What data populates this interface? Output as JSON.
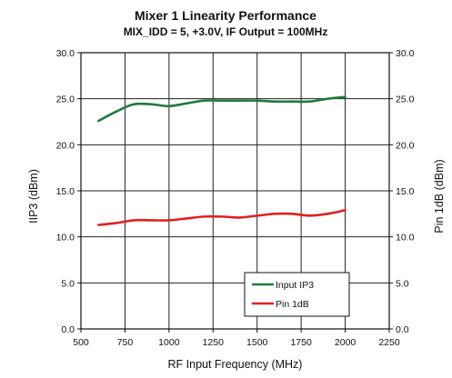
{
  "chart_data": {
    "type": "line",
    "title": "Mixer 1 Linearity Performance",
    "subtitle": "MIX_IDD = 5, +3.0V, IF Output = 100MHz",
    "xlabel": "RF Input Frequency (MHz)",
    "ylabel": "IIP3 (dBm)",
    "y2label": "Pin 1dB (dBm)",
    "xlim": [
      500,
      2250
    ],
    "ylim": [
      0,
      30
    ],
    "y2lim": [
      0,
      30
    ],
    "x_ticks": [
      500,
      750,
      1000,
      1250,
      1500,
      1750,
      2000,
      2250
    ],
    "y_ticks": [
      "0.0",
      "5.0",
      "10.0",
      "15.0",
      "20.0",
      "25.0",
      "30.0"
    ],
    "y2_ticks": [
      "0.0",
      "5.0",
      "10.0",
      "15.0",
      "20.0",
      "25.0",
      "30.0"
    ],
    "grid": true,
    "legend_position": "bottom-right",
    "series": [
      {
        "name": "Input IP3",
        "color": "#1f7a3a",
        "x": [
          600,
          700,
          800,
          900,
          1000,
          1100,
          1200,
          1300,
          1400,
          1500,
          1600,
          1700,
          1800,
          1900,
          2000
        ],
        "values": [
          22.6,
          23.6,
          24.4,
          24.4,
          24.2,
          24.5,
          24.8,
          24.8,
          24.8,
          24.8,
          24.7,
          24.7,
          24.7,
          25.0,
          25.2
        ]
      },
      {
        "name": "Pin 1dB",
        "color": "#e02020",
        "x": [
          600,
          700,
          800,
          900,
          1000,
          1100,
          1200,
          1300,
          1400,
          1500,
          1600,
          1700,
          1800,
          1900,
          2000
        ],
        "values": [
          11.3,
          11.5,
          11.8,
          11.8,
          11.8,
          12.0,
          12.2,
          12.2,
          12.1,
          12.3,
          12.5,
          12.5,
          12.3,
          12.5,
          12.9
        ]
      }
    ]
  }
}
